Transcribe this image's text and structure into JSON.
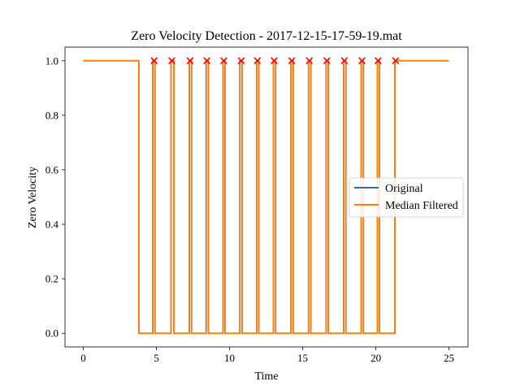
{
  "chart_data": {
    "type": "line",
    "title": "Zero Velocity Detection - 2017-12-15-17-59-19.mat",
    "xlabel": "Time",
    "ylabel": "Zero Velocity",
    "xlim": [
      -1.25,
      26.3
    ],
    "ylim": [
      -0.05,
      1.05
    ],
    "xticks": [
      0,
      5,
      10,
      15,
      20,
      25
    ],
    "yticks": [
      0.0,
      0.2,
      0.4,
      0.6,
      0.8,
      1.0
    ],
    "xtick_labels": [
      "0",
      "5",
      "10",
      "15",
      "20",
      "25"
    ],
    "ytick_labels": [
      "0.0",
      "0.2",
      "0.4",
      "0.6",
      "0.8",
      "1.0"
    ],
    "grid": false,
    "legend_position": "center-right",
    "series": [
      {
        "name": "Original",
        "color": "#1f77b4",
        "x": [
          0,
          3.8,
          3.8,
          4.75,
          4.75,
          4.9,
          4.9,
          6.0,
          6.0,
          6.2,
          6.2,
          7.25,
          7.25,
          7.4,
          7.4,
          8.4,
          8.4,
          8.55,
          8.55,
          9.55,
          9.55,
          9.7,
          9.7,
          10.7,
          10.7,
          10.85,
          10.85,
          11.85,
          11.85,
          12.0,
          12.0,
          13.0,
          13.0,
          13.15,
          13.15,
          14.2,
          14.2,
          14.35,
          14.35,
          15.4,
          15.4,
          15.55,
          15.55,
          16.6,
          16.6,
          16.75,
          16.75,
          17.8,
          17.8,
          17.95,
          17.95,
          19.0,
          19.0,
          19.15,
          19.15,
          20.1,
          20.1,
          20.25,
          20.25,
          21.3,
          21.3,
          25.0
        ],
        "y": [
          1,
          1,
          0,
          0,
          1,
          1,
          0,
          0,
          1,
          1,
          0,
          0,
          1,
          1,
          0,
          0,
          1,
          1,
          0,
          0,
          1,
          1,
          0,
          0,
          1,
          1,
          0,
          0,
          1,
          1,
          0,
          0,
          1,
          1,
          0,
          0,
          1,
          1,
          0,
          0,
          1,
          1,
          0,
          0,
          1,
          1,
          0,
          0,
          1,
          1,
          0,
          0,
          1,
          1,
          0,
          0,
          1,
          1,
          0,
          0,
          1,
          1
        ]
      },
      {
        "name": "Median Filtered",
        "color": "#ff7f0e",
        "x": [
          0,
          3.8,
          3.8,
          4.75,
          4.75,
          4.9,
          4.9,
          6.0,
          6.0,
          6.2,
          6.2,
          7.25,
          7.25,
          7.4,
          7.4,
          8.4,
          8.4,
          8.55,
          8.55,
          9.55,
          9.55,
          9.7,
          9.7,
          10.7,
          10.7,
          10.85,
          10.85,
          11.85,
          11.85,
          12.0,
          12.0,
          13.0,
          13.0,
          13.15,
          13.15,
          14.2,
          14.2,
          14.35,
          14.35,
          15.4,
          15.4,
          15.55,
          15.55,
          16.6,
          16.6,
          16.75,
          16.75,
          17.8,
          17.8,
          17.95,
          17.95,
          19.0,
          19.0,
          19.15,
          19.15,
          20.1,
          20.1,
          20.25,
          20.25,
          21.3,
          21.3,
          25.0
        ],
        "y": [
          1,
          1,
          0,
          0,
          1,
          1,
          0,
          0,
          1,
          1,
          0,
          0,
          1,
          1,
          0,
          0,
          1,
          1,
          0,
          0,
          1,
          1,
          0,
          0,
          1,
          1,
          0,
          0,
          1,
          1,
          0,
          0,
          1,
          1,
          0,
          0,
          1,
          1,
          0,
          0,
          1,
          1,
          0,
          0,
          1,
          1,
          0,
          0,
          1,
          1,
          0,
          0,
          1,
          1,
          0,
          0,
          1,
          1,
          0,
          0,
          1,
          1
        ]
      }
    ],
    "markers": {
      "symbol": "x",
      "color": "#ff0000",
      "x": [
        4.85,
        6.05,
        7.3,
        8.45,
        9.6,
        10.8,
        11.9,
        13.05,
        14.25,
        15.45,
        16.65,
        17.85,
        19.05,
        20.15,
        21.35
      ],
      "y": [
        1,
        1,
        1,
        1,
        1,
        1,
        1,
        1,
        1,
        1,
        1,
        1,
        1,
        1,
        1
      ]
    }
  }
}
